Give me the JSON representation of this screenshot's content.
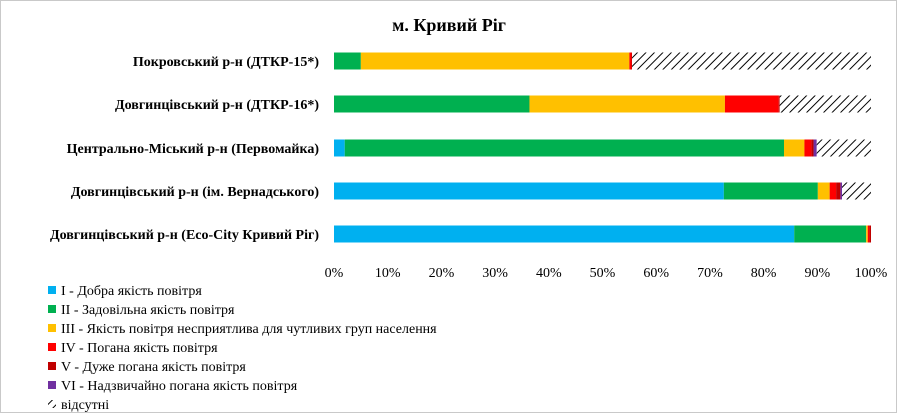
{
  "chart_data": {
    "type": "bar",
    "orientation": "horizontal",
    "stacked": true,
    "percent_stacked": true,
    "title": "м. Кривий Ріг",
    "categories": [
      "Покровський р-н (ДТКР-15*)",
      "Довгинцівський р-н (ДТКР-16*)",
      "Центрально-Міський р-н (Первомайка)",
      "Довгинцівський р-н (ім. Вернадського)",
      "Довгинцівський р-н (Eco-City Кривий Ріг)"
    ],
    "xlim": [
      0,
      100
    ],
    "x_ticks": [
      "0%",
      "10%",
      "20%",
      "30%",
      "40%",
      "50%",
      "60%",
      "70%",
      "80%",
      "90%",
      "100%"
    ],
    "grid": false,
    "legend_position": "bottom-left",
    "series": [
      {
        "name": "I - Добра якість  повітря",
        "color": "#00b0f0",
        "values": [
          0,
          0,
          2,
          72.6,
          85.7
        ]
      },
      {
        "name": "II - Задовільна якість  повітря",
        "color": "#00b050",
        "values": [
          5,
          36.4,
          81.8,
          17.5,
          13.4
        ]
      },
      {
        "name": "III - Якість повітря несприятлива для чутливих груп населення",
        "color": "#ffc000",
        "values": [
          50,
          36.4,
          3.8,
          2.2,
          0.3
        ]
      },
      {
        "name": "IV - Погана якість  повітря",
        "color": "#ff0000",
        "values": [
          0.4,
          10,
          1.3,
          1.2,
          0.3
        ]
      },
      {
        "name": "V - Дуже погана якість  повітря",
        "color": "#c00000",
        "values": [
          0.1,
          0.2,
          0.4,
          0.8,
          0.3
        ]
      },
      {
        "name": "VI - Надзвичайно погана якість  повітря",
        "color": "#7030a0",
        "values": [
          0,
          0,
          0.6,
          0.3,
          0
        ]
      },
      {
        "name": "відсутні",
        "color": "hatch",
        "values": [
          44.5,
          17,
          10.1,
          5.4,
          0
        ]
      }
    ]
  }
}
